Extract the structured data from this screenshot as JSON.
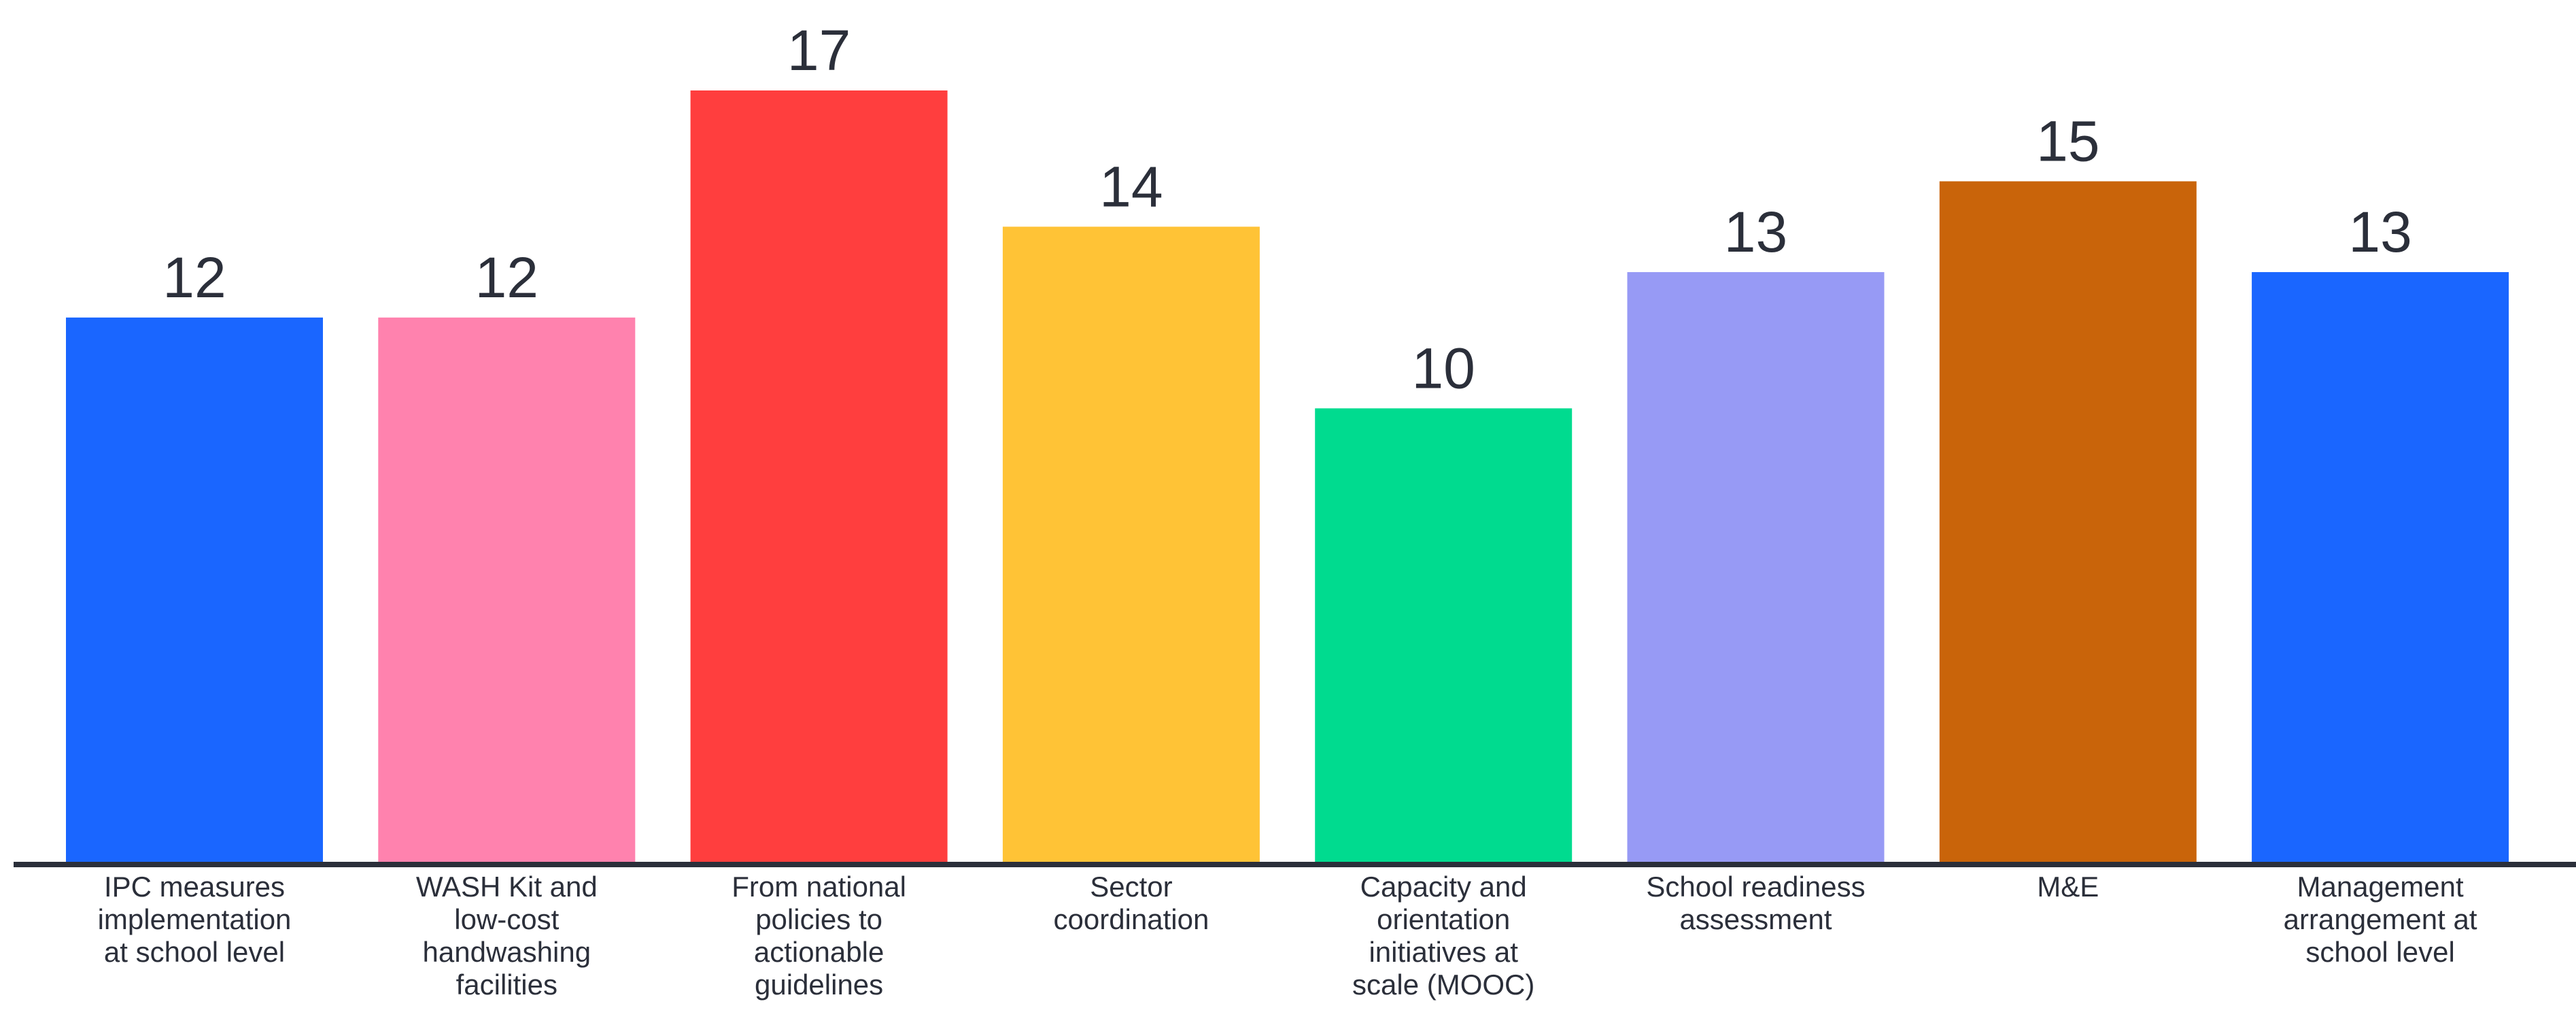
{
  "chart_data": {
    "type": "bar",
    "title": "",
    "xlabel": "",
    "ylabel": "",
    "ylim": [
      0,
      17
    ],
    "grid": false,
    "legend": "none",
    "categories": [
      [
        "IPC measures",
        "implementation",
        "at school level"
      ],
      [
        "WASH Kit and",
        "low-cost",
        "handwashing",
        "facilities"
      ],
      [
        "From national",
        "policies to",
        "actionable",
        "guidelines"
      ],
      [
        "Sector",
        "coordination"
      ],
      [
        "Capacity and",
        "orientation",
        "initiatives at",
        "scale (MOOC)"
      ],
      [
        "School readiness",
        "assessment"
      ],
      [
        "M&E"
      ],
      [
        "Management",
        "arrangement at",
        "school level"
      ]
    ],
    "values": [
      12,
      12,
      17,
      14,
      10,
      13,
      15,
      13
    ],
    "colors": [
      "#1a66ff",
      "#ff82ae",
      "#ff3e3e",
      "#ffc336",
      "#00db8f",
      "#979af5",
      "#c9640a",
      "#1a66ff"
    ],
    "label_color": "#2b2f3a",
    "axis_color": "#2b2f3a"
  }
}
